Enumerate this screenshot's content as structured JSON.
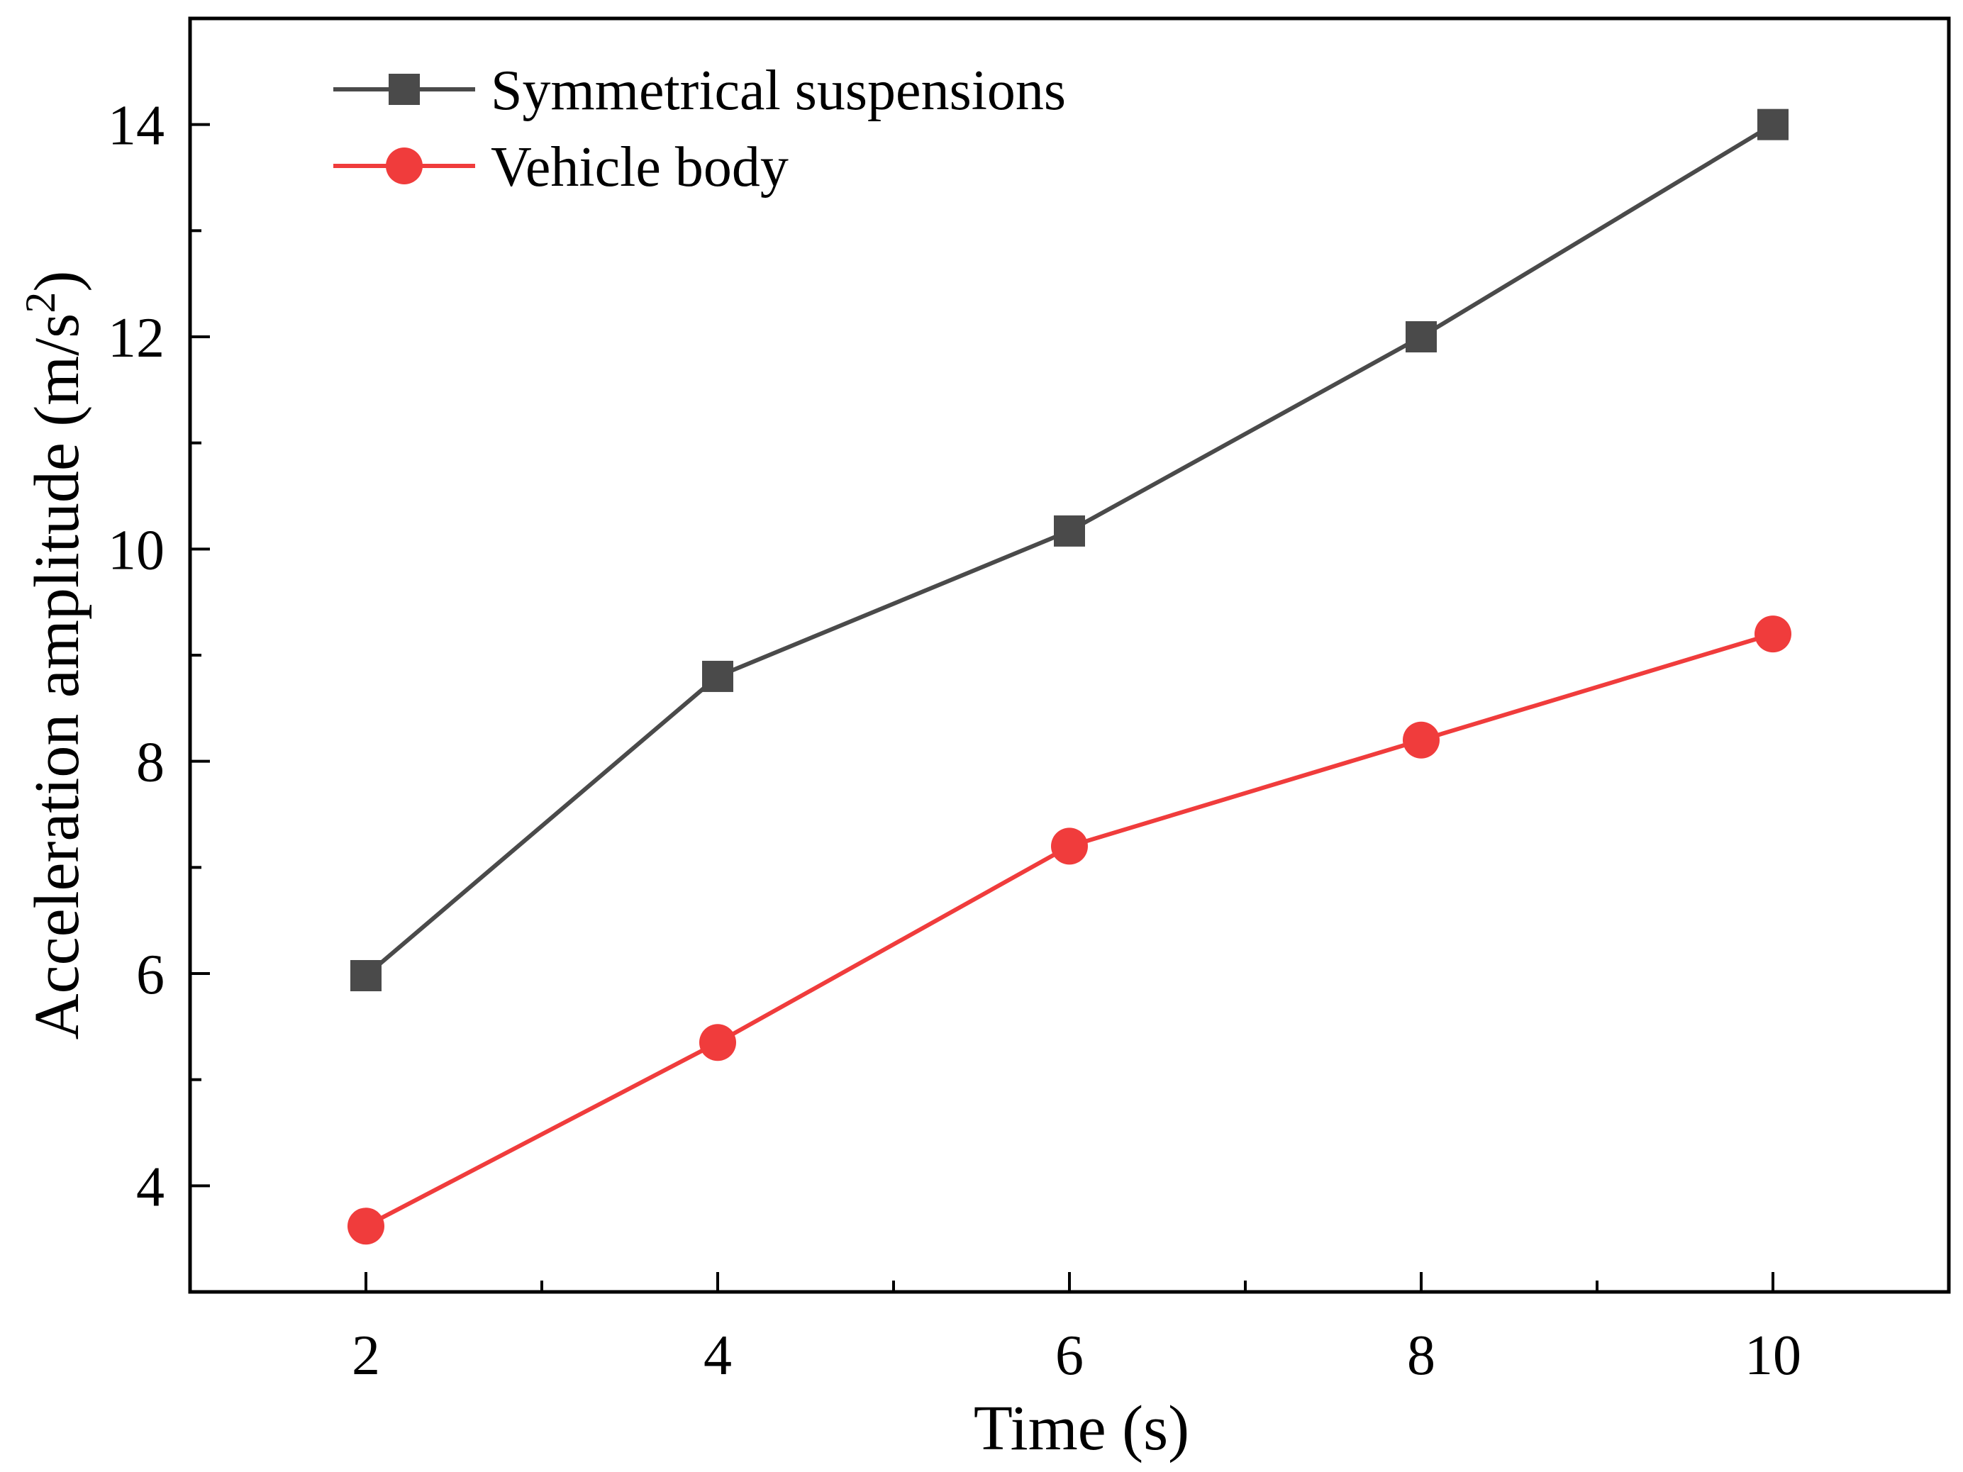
{
  "chart_data": {
    "type": "line",
    "xlabel": "Time (s)",
    "ylabel": {
      "main": "Acceleration amplitude (m/s",
      "superscript": "2",
      "close": ")"
    },
    "x": [
      2,
      4,
      6,
      8,
      10
    ],
    "xlim": [
      1,
      11
    ],
    "ylim": [
      3,
      15
    ],
    "x_major_ticks": [
      2,
      4,
      6,
      8,
      10
    ],
    "x_minor_ticks": [
      3,
      5,
      7,
      9
    ],
    "y_major_ticks": [
      4,
      6,
      8,
      10,
      12,
      14
    ],
    "y_minor_ticks": [
      5,
      7,
      9,
      11,
      13
    ],
    "x_tick_labels": [
      "2",
      "4",
      "6",
      "8",
      "10"
    ],
    "y_tick_labels": [
      "4",
      "6",
      "8",
      "10",
      "12",
      "14"
    ],
    "grid": false,
    "legend_position": "top-left",
    "series": [
      {
        "name": "Symmetrical suspensions",
        "values": [
          5.98,
          8.8,
          10.17,
          12.0,
          14.0
        ],
        "color": "#4a4a4a",
        "marker": "square"
      },
      {
        "name": "Vehicle body",
        "values": [
          3.62,
          5.35,
          7.2,
          8.2,
          9.2
        ],
        "color": "#f03c3c",
        "marker": "circle"
      }
    ]
  }
}
